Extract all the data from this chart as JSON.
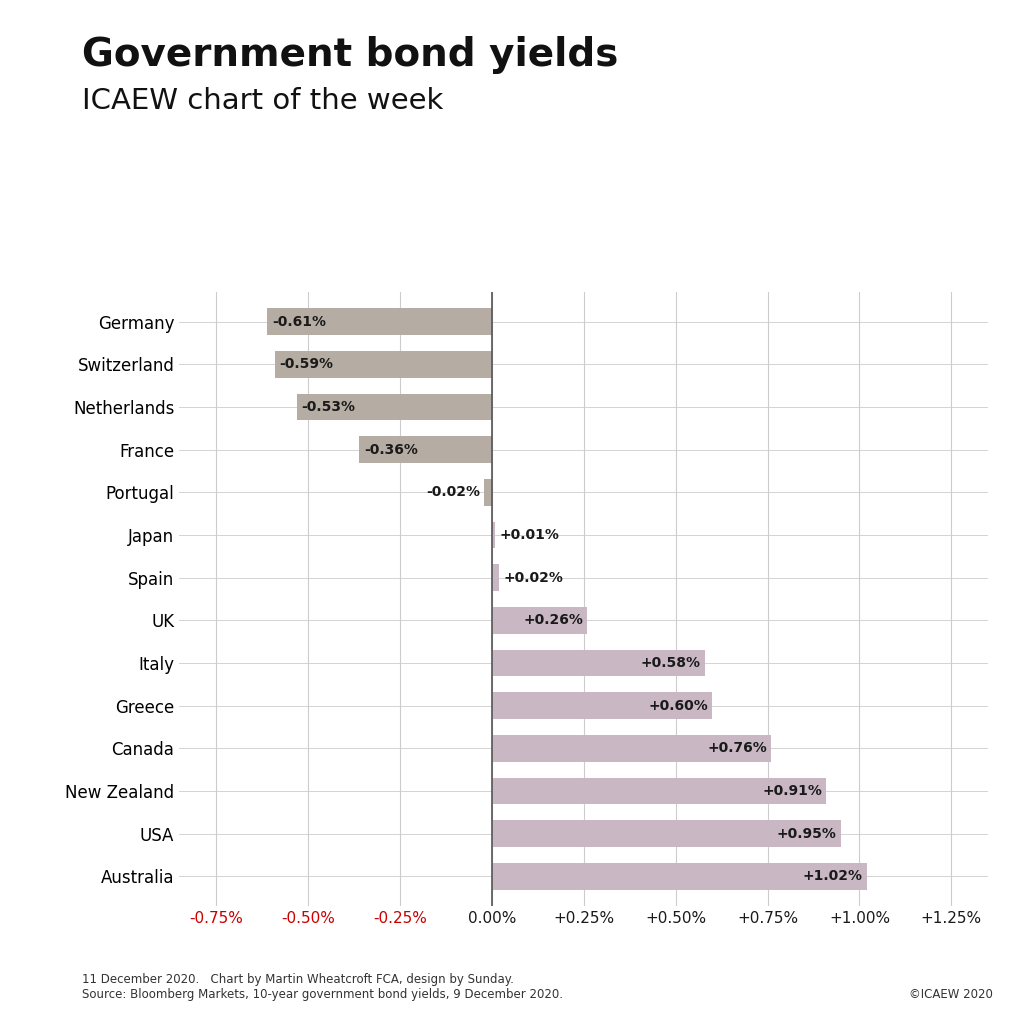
{
  "title": "Government bond yields",
  "subtitle": "ICAEW chart of the week",
  "countries": [
    "Germany",
    "Switzerland",
    "Netherlands",
    "France",
    "Portugal",
    "Japan",
    "Spain",
    "UK",
    "Italy",
    "Greece",
    "Canada",
    "New Zealand",
    "USA",
    "Australia"
  ],
  "values": [
    -0.61,
    -0.59,
    -0.53,
    -0.36,
    -0.02,
    0.01,
    0.02,
    0.26,
    0.58,
    0.6,
    0.76,
    0.91,
    0.95,
    1.02
  ],
  "negative_color": "#b5ada3",
  "positive_color": "#c9b8c4",
  "xlim": [
    -0.85,
    1.35
  ],
  "xticks": [
    -0.75,
    -0.5,
    -0.25,
    0.0,
    0.25,
    0.5,
    0.75,
    1.0,
    1.25
  ],
  "xtick_labels": [
    "-0.75%",
    "-0.50%",
    "-0.25%",
    "0.00%",
    "+0.25%",
    "+0.50%",
    "+0.75%",
    "+1.00%",
    "+1.25%"
  ],
  "negative_tick_color": "#cc0000",
  "positive_tick_color": "#1a1a1a",
  "footer_left": "11 December 2020.   Chart by Martin Wheatcroft FCA, design by Sunday.\nSource: Bloomberg Markets, 10-year government bond yields, 9 December 2020.",
  "footer_right": "©ICAEW 2020",
  "background_color": "#ffffff",
  "bar_label_color": "#1a1a1a",
  "grid_color": "#cccccc",
  "zero_line_color": "#555555",
  "label_threshold": 0.05
}
